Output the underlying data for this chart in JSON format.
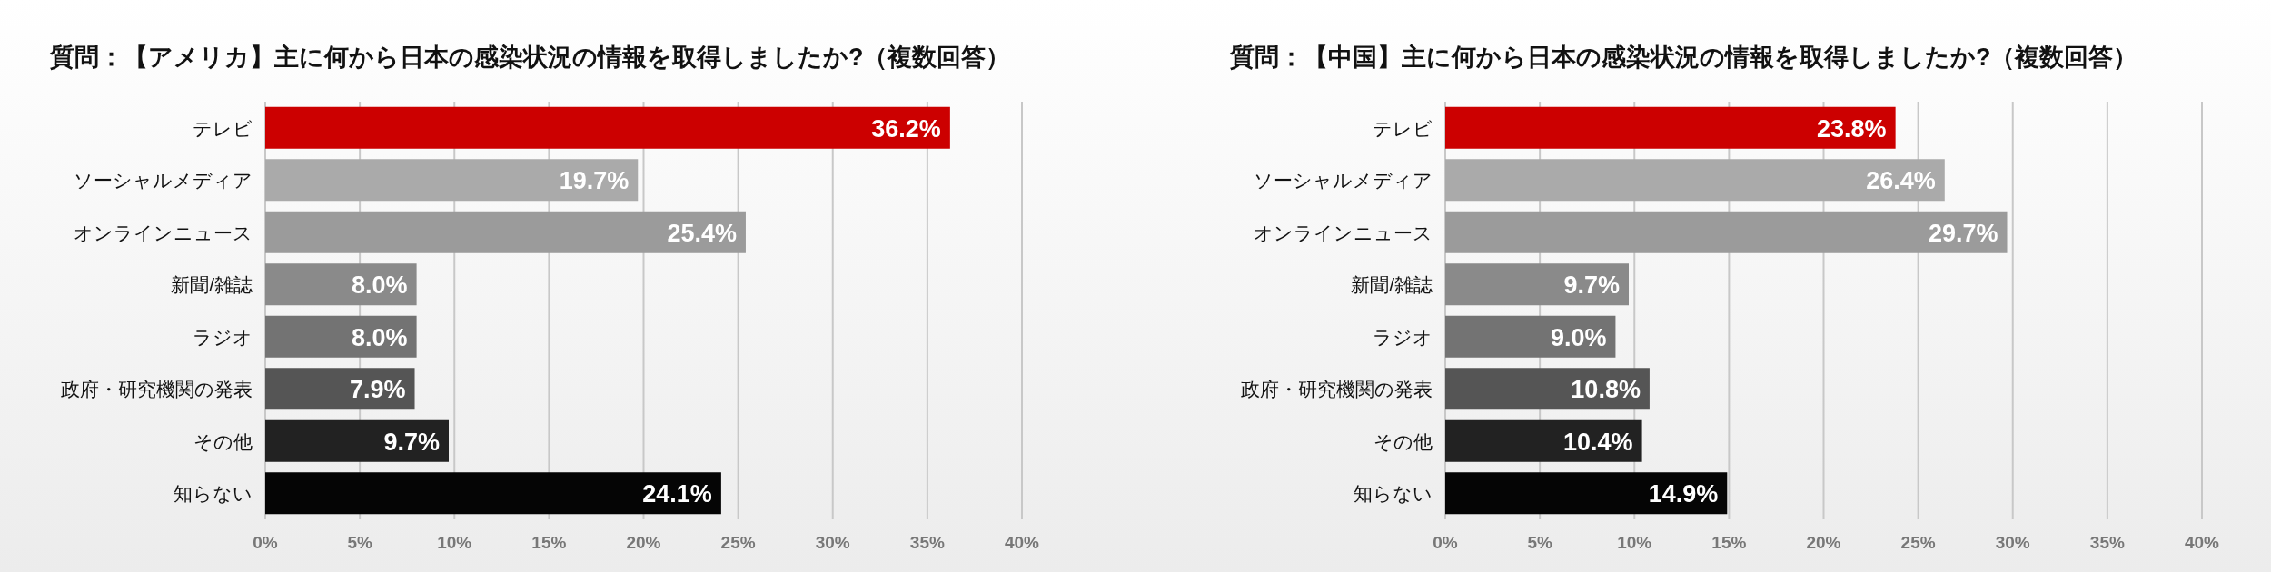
{
  "chart_data": [
    {
      "type": "bar",
      "orientation": "horizontal",
      "title": "質問：【アメリカ】主に何から日本の感染状況の情報を取得しましたか?（複数回答）",
      "categories": [
        "テレビ",
        "ソーシャルメディア",
        "オンラインニュース",
        "新聞/雑誌",
        "ラジオ",
        "政府・研究機関の発表",
        "その他",
        "知らない"
      ],
      "values": [
        36.2,
        19.7,
        25.4,
        8.0,
        8.0,
        7.9,
        9.7,
        24.1
      ],
      "value_labels": [
        "36.2%",
        "19.7%",
        "25.4%",
        "8.0%",
        "8.0%",
        "7.9%",
        "9.7%",
        "24.1%"
      ],
      "colors": [
        "#cc0000",
        "#aaaaaa",
        "#9b9b9b",
        "#8a8a8a",
        "#737373",
        "#555555",
        "#222222",
        "#050505"
      ],
      "xlim": [
        0,
        40
      ],
      "xticks": [
        {
          "value": 0,
          "label": "0%"
        },
        {
          "value": 5,
          "label": "5%"
        },
        {
          "value": 10,
          "label": "10%"
        },
        {
          "value": 15,
          "label": "15%"
        },
        {
          "value": 20,
          "label": "20%"
        },
        {
          "value": 25,
          "label": "25%"
        },
        {
          "value": 30,
          "label": "30%"
        },
        {
          "value": 35,
          "label": "35%"
        },
        {
          "value": 40,
          "label": "40%"
        }
      ],
      "grid": "x"
    },
    {
      "type": "bar",
      "orientation": "horizontal",
      "title": "質問：【中国】主に何から日本の感染状況の情報を取得しましたか?（複数回答）",
      "categories": [
        "テレビ",
        "ソーシャルメディア",
        "オンラインニュース",
        "新聞/雑誌",
        "ラジオ",
        "政府・研究機関の発表",
        "その他",
        "知らない"
      ],
      "values": [
        23.8,
        26.4,
        29.7,
        9.7,
        9.0,
        10.8,
        10.4,
        14.9
      ],
      "value_labels": [
        "23.8%",
        "26.4%",
        "29.7%",
        "9.7%",
        "9.0%",
        "10.8%",
        "10.4%",
        "14.9%"
      ],
      "colors": [
        "#cc0000",
        "#aaaaaa",
        "#9b9b9b",
        "#8a8a8a",
        "#737373",
        "#555555",
        "#222222",
        "#050505"
      ],
      "xlim": [
        0,
        40
      ],
      "xticks": [
        {
          "value": 0,
          "label": "0%"
        },
        {
          "value": 5,
          "label": "5%"
        },
        {
          "value": 10,
          "label": "10%"
        },
        {
          "value": 15,
          "label": "15%"
        },
        {
          "value": 20,
          "label": "20%"
        },
        {
          "value": 25,
          "label": "25%"
        },
        {
          "value": 30,
          "label": "30%"
        },
        {
          "value": 35,
          "label": "35%"
        },
        {
          "value": 40,
          "label": "40%"
        }
      ],
      "grid": "x"
    }
  ]
}
